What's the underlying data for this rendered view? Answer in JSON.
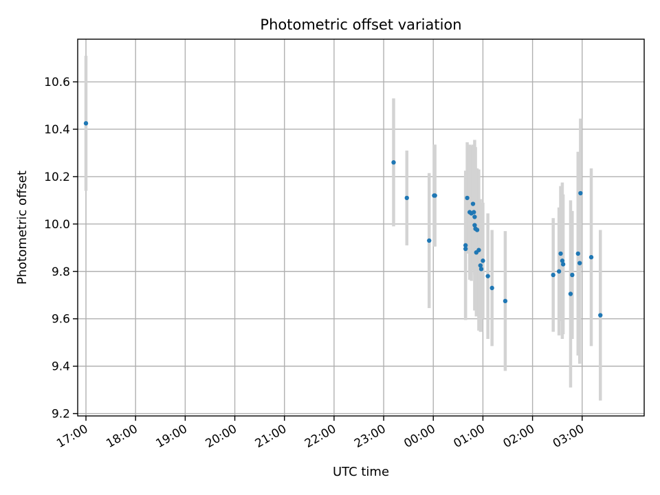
{
  "chart_data": {
    "type": "scatter",
    "title": "Photometric offset variation",
    "xlabel": "UTC time",
    "ylabel": "Photometric offset",
    "grid": true,
    "xlim": [
      "16:50",
      "28:15"
    ],
    "ylim": [
      9.19,
      10.78
    ],
    "x_ticks": [
      "17:00",
      "18:00",
      "19:00",
      "20:00",
      "21:00",
      "22:00",
      "23:00",
      "00:00",
      "01:00",
      "02:00",
      "03:00"
    ],
    "y_ticks": [
      "9.2",
      "9.4",
      "9.6",
      "9.8",
      "10.0",
      "10.2",
      "10.4",
      "10.6"
    ],
    "colors": {
      "points": "#1f77b4",
      "error_bars": "#d3d3d3"
    },
    "points": [
      {
        "t": "17:00",
        "y": 10.425,
        "err": 0.285
      },
      {
        "t": "23:12",
        "y": 10.26,
        "err": 0.27
      },
      {
        "t": "23:28",
        "y": 10.11,
        "err": 0.2
      },
      {
        "t": "23:55",
        "y": 9.93,
        "err": 0.285
      },
      {
        "t": "00:01",
        "y": 10.12,
        "err": 0.215
      },
      {
        "t": "00:02",
        "y": 10.12,
        "err": 0.215
      },
      {
        "t": "00:39",
        "y": 9.91,
        "err": 0.315
      },
      {
        "t": "00:39",
        "y": 9.895,
        "err": 0.3
      },
      {
        "t": "00:41",
        "y": 10.11,
        "err": 0.235
      },
      {
        "t": "00:44",
        "y": 10.05,
        "err": 0.285
      },
      {
        "t": "00:46",
        "y": 10.045,
        "err": 0.285
      },
      {
        "t": "00:48",
        "y": 10.085,
        "err": 0.25
      },
      {
        "t": "00:49",
        "y": 10.05,
        "err": 0.245
      },
      {
        "t": "00:50",
        "y": 10.03,
        "err": 0.245
      },
      {
        "t": "00:50",
        "y": 9.995,
        "err": 0.36
      },
      {
        "t": "00:51",
        "y": 9.98,
        "err": 0.345
      },
      {
        "t": "00:52",
        "y": 9.88,
        "err": 0.27
      },
      {
        "t": "00:53",
        "y": 9.975,
        "err": 0.26
      },
      {
        "t": "00:55",
        "y": 9.89,
        "err": 0.34
      },
      {
        "t": "00:57",
        "y": 9.825,
        "err": 0.28
      },
      {
        "t": "00:58",
        "y": 9.81,
        "err": 0.265
      },
      {
        "t": "01:00",
        "y": 9.845,
        "err": 0.245
      },
      {
        "t": "01:06",
        "y": 9.78,
        "err": 0.265
      },
      {
        "t": "01:11",
        "y": 9.73,
        "err": 0.245
      },
      {
        "t": "01:27",
        "y": 9.675,
        "err": 0.295
      },
      {
        "t": "02:25",
        "y": 9.785,
        "err": 0.24
      },
      {
        "t": "02:32",
        "y": 9.8,
        "err": 0.27
      },
      {
        "t": "02:34",
        "y": 9.875,
        "err": 0.285
      },
      {
        "t": "02:36",
        "y": 9.845,
        "err": 0.33
      },
      {
        "t": "02:37",
        "y": 9.83,
        "err": 0.295
      },
      {
        "t": "02:46",
        "y": 9.705,
        "err": 0.395
      },
      {
        "t": "02:48",
        "y": 9.785,
        "err": 0.27
      },
      {
        "t": "02:55",
        "y": 9.875,
        "err": 0.43
      },
      {
        "t": "02:57",
        "y": 9.835,
        "err": 0.425
      },
      {
        "t": "02:58",
        "y": 10.13,
        "err": 0.315
      },
      {
        "t": "03:11",
        "y": 9.86,
        "err": 0.375
      },
      {
        "t": "03:22",
        "y": 9.615,
        "err": 0.36
      }
    ]
  }
}
